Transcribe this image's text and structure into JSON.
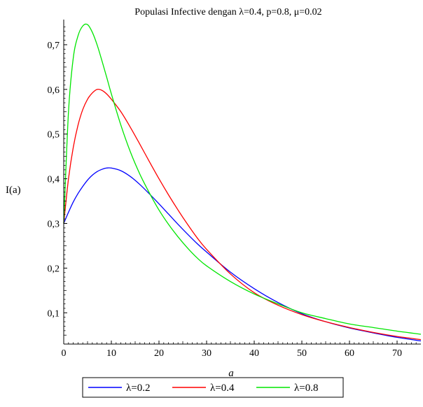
{
  "chart_data": {
    "type": "line",
    "title": "Populasi Infective dengan λ=0.4, p=0.8, μ=0.02",
    "xlabel": "a",
    "ylabel": "I(a)",
    "xlim": [
      0,
      75
    ],
    "ylim": [
      0.03,
      0.75
    ],
    "x_ticks": [
      0,
      10,
      20,
      30,
      40,
      50,
      60,
      70
    ],
    "y_ticks": [
      "0,1",
      "0,2",
      "0,3",
      "0,4",
      "0,5",
      "0,6",
      "0,7"
    ],
    "y_tick_values": [
      0.1,
      0.2,
      0.3,
      0.4,
      0.5,
      0.6,
      0.7
    ],
    "grid": false,
    "legend_position": "bottom",
    "series": [
      {
        "name": "λ=0.2",
        "color": "#0000ff",
        "x": [
          0,
          1,
          2,
          3,
          4,
          5,
          6,
          7,
          8,
          9,
          10,
          12,
          14,
          16,
          18,
          20,
          22,
          24,
          26,
          28,
          30,
          35,
          40,
          45,
          50,
          55,
          60,
          65,
          70,
          75
        ],
        "y": [
          0.3,
          0.325,
          0.348,
          0.367,
          0.383,
          0.397,
          0.408,
          0.416,
          0.421,
          0.424,
          0.424,
          0.418,
          0.405,
          0.387,
          0.366,
          0.344,
          0.321,
          0.298,
          0.276,
          0.255,
          0.236,
          0.191,
          0.154,
          0.123,
          0.098,
          0.08,
          0.066,
          0.055,
          0.045,
          0.037
        ]
      },
      {
        "name": "λ=0.4",
        "color": "#ff0000",
        "x": [
          0,
          1,
          2,
          3,
          4,
          5,
          6,
          7,
          8,
          9,
          10,
          12,
          14,
          16,
          18,
          20,
          22,
          24,
          26,
          28,
          30,
          35,
          40,
          45,
          50,
          55,
          60,
          65,
          70,
          75
        ],
        "y": [
          0.3,
          0.4,
          0.47,
          0.52,
          0.555,
          0.578,
          0.592,
          0.6,
          0.598,
          0.59,
          0.578,
          0.55,
          0.515,
          0.477,
          0.438,
          0.4,
          0.364,
          0.33,
          0.298,
          0.268,
          0.242,
          0.187,
          0.145,
          0.117,
          0.096,
          0.08,
          0.067,
          0.056,
          0.047,
          0.04
        ]
      },
      {
        "name": "λ=0.8",
        "color": "#00e600",
        "x": [
          0,
          1,
          2,
          3,
          4,
          5,
          6,
          7,
          8,
          9,
          10,
          12,
          14,
          16,
          18,
          20,
          22,
          24,
          26,
          28,
          30,
          35,
          40,
          45,
          50,
          55,
          60,
          65,
          70,
          75
        ],
        "y": [
          0.3,
          0.55,
          0.67,
          0.72,
          0.742,
          0.745,
          0.728,
          0.7,
          0.665,
          0.628,
          0.59,
          0.52,
          0.46,
          0.41,
          0.368,
          0.33,
          0.298,
          0.27,
          0.245,
          0.223,
          0.205,
          0.17,
          0.142,
          0.12,
          0.1,
          0.087,
          0.075,
          0.067,
          0.059,
          0.052
        ]
      }
    ]
  }
}
